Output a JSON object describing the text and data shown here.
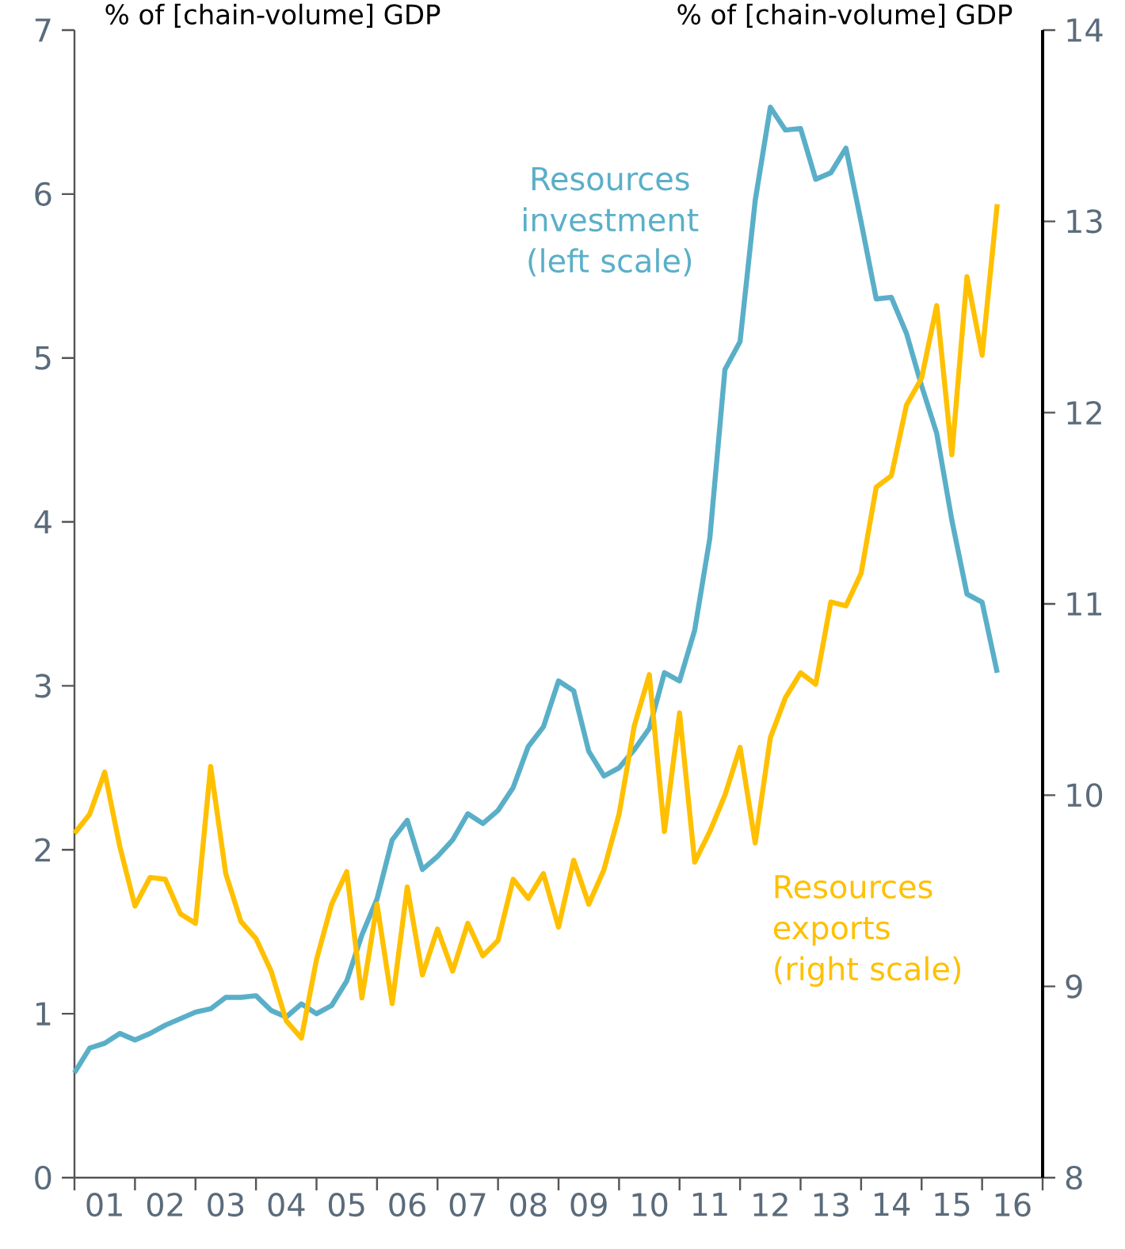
{
  "chart_data": {
    "type": "line",
    "ylabel": "% of [chain-volume] GDP",
    "y2label": "% of [chain-volume] GDP",
    "line_style": "solid",
    "x": [
      0.5,
      0.75,
      1,
      1.25,
      1.5,
      1.75,
      2,
      2.25,
      2.5,
      2.75,
      3,
      3.25,
      3.5,
      3.75,
      4,
      4.25,
      4.5,
      4.75,
      5,
      5.25,
      5.5,
      5.75,
      6,
      6.25,
      6.5,
      6.75,
      7,
      7.25,
      7.5,
      7.75,
      8,
      8.25,
      8.5,
      8.75,
      9,
      9.25,
      9.5,
      9.75,
      10,
      10.25,
      10.5,
      10.75,
      11,
      11.25,
      11.5,
      11.75,
      12,
      12.25,
      12.5,
      12.75,
      13,
      13.25,
      13.5,
      13.75,
      14,
      14.25,
      14.5,
      14.75,
      15,
      15.25,
      15.5,
      15.75
    ],
    "xlim": [
      0.5,
      16.5
    ],
    "xticks": [
      {
        "value": 0.5,
        "label": null
      },
      {
        "value": 1.5,
        "label": null
      },
      {
        "value": 2.5,
        "label": null
      },
      {
        "value": 3.5,
        "label": null
      },
      {
        "value": 4.5,
        "label": null
      },
      {
        "value": 5.5,
        "label": null
      },
      {
        "value": 6.5,
        "label": null
      },
      {
        "value": 7.5,
        "label": null
      },
      {
        "value": 8.5,
        "label": null
      },
      {
        "value": 9.5,
        "label": null
      },
      {
        "value": 10.5,
        "label": null
      },
      {
        "value": 11.5,
        "label": null
      },
      {
        "value": 12.5,
        "label": null
      },
      {
        "value": 13.5,
        "label": null
      },
      {
        "value": 14.5,
        "label": null
      },
      {
        "value": 15.5,
        "label": null
      },
      {
        "value": 16.5,
        "label": null
      },
      {
        "value": 1,
        "label": "01"
      },
      {
        "value": 2,
        "label": "02"
      },
      {
        "value": 3,
        "label": "03"
      },
      {
        "value": 4,
        "label": "04"
      },
      {
        "value": 5,
        "label": "05"
      },
      {
        "value": 6,
        "label": "06"
      },
      {
        "value": 7,
        "label": "07"
      },
      {
        "value": 8,
        "label": "08"
      },
      {
        "value": 9,
        "label": "09"
      },
      {
        "value": 10,
        "label": "10"
      },
      {
        "value": 11,
        "label": "11"
      },
      {
        "value": 12,
        "label": "12"
      },
      {
        "value": 13,
        "label": "13"
      },
      {
        "value": 14,
        "label": "14"
      },
      {
        "value": 15,
        "label": "15"
      },
      {
        "value": 16,
        "label": "16"
      }
    ],
    "ylim": [
      0,
      7
    ],
    "yticks": [
      0,
      1,
      2,
      3,
      4,
      5,
      6,
      7
    ],
    "y2lim": [
      8,
      14
    ],
    "y2ticks": [
      8,
      9,
      10,
      11,
      12,
      13,
      14
    ],
    "series": [
      {
        "name": "Resources investment (left scale)",
        "color": "#5aafc8",
        "values": [
          0.64,
          0.79,
          0.82,
          0.88,
          0.84,
          0.88,
          0.93,
          0.97,
          1.01,
          1.03,
          1.1,
          1.1,
          1.11,
          1.02,
          0.98,
          1.06,
          1.0,
          1.05,
          1.2,
          1.48,
          1.7,
          2.06,
          2.18,
          1.88,
          1.96,
          2.06,
          2.22,
          2.16,
          2.24,
          2.38,
          2.63,
          2.75,
          3.03,
          2.97,
          2.6,
          2.45,
          2.5,
          2.61,
          2.74,
          3.08,
          3.03,
          3.34,
          3.9,
          4.93,
          5.1,
          5.96,
          6.53,
          6.39,
          6.4,
          6.09,
          6.13,
          6.28,
          5.83,
          5.36,
          5.37,
          5.15,
          4.83,
          4.54,
          4.01,
          3.56,
          3.51,
          3.08
        ]
      },
      {
        "name": "Resources exports (right scale)",
        "color": "#ffc000",
        "axis": "y2",
        "values": [
          9.8,
          9.9,
          10.12,
          9.73,
          9.42,
          9.57,
          9.56,
          9.38,
          9.33,
          10.15,
          9.59,
          9.34,
          9.25,
          9.08,
          8.82,
          8.73,
          9.14,
          9.43,
          9.6,
          8.94,
          9.43,
          8.91,
          9.52,
          9.06,
          9.3,
          9.08,
          9.33,
          9.16,
          9.24,
          9.56,
          9.46,
          9.59,
          9.31,
          9.66,
          9.43,
          9.61,
          9.9,
          10.36,
          10.63,
          9.81,
          10.43,
          9.65,
          9.81,
          10.0,
          10.25,
          9.75,
          10.3,
          10.51,
          10.64,
          10.58,
          11.01,
          10.99,
          11.16,
          11.61,
          11.67,
          12.04,
          12.18,
          12.56,
          11.78,
          12.71,
          12.3,
          13.09
        ]
      }
    ]
  }
}
